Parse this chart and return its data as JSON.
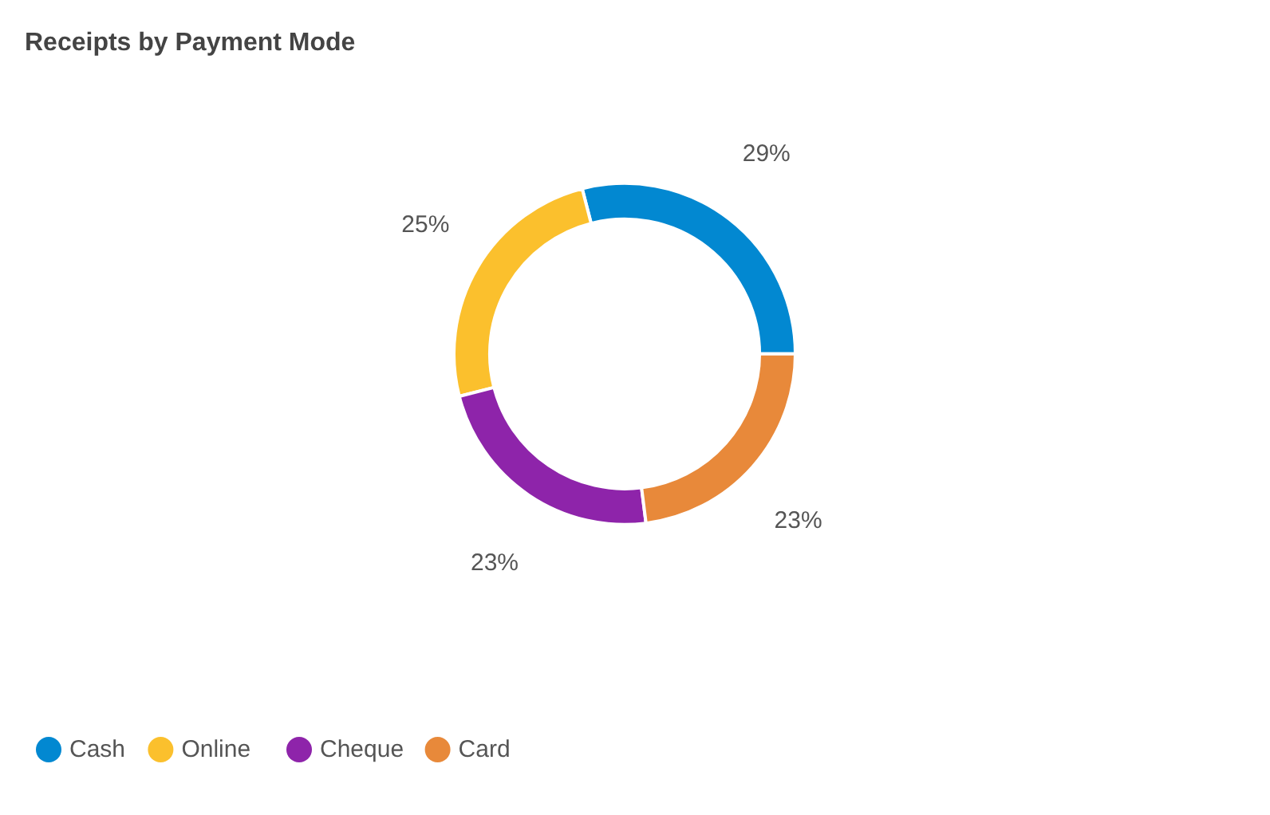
{
  "chart_data": {
    "type": "donut",
    "title": "Receipts by Payment Mode",
    "categories": [
      "Cash",
      "Online",
      "Cheque",
      "Card"
    ],
    "values": [
      29,
      25,
      23,
      23
    ],
    "colors": [
      "#0288d1",
      "#fbc02d",
      "#8e24aa",
      "#e8893a"
    ],
    "value_labels": [
      "29%",
      "25%",
      "23%",
      "23%"
    ],
    "legend": "bottom left"
  }
}
